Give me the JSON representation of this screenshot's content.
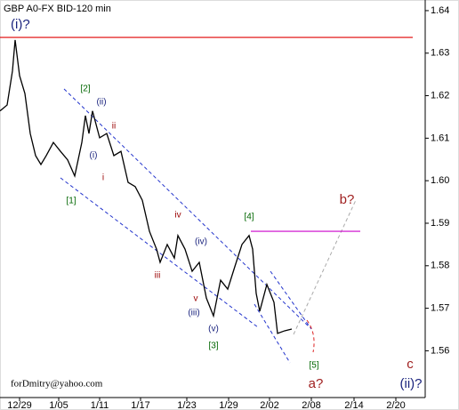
{
  "chart_data": {
    "type": "line",
    "title": "GBP A0-FX BID-120 min",
    "color": "#000000",
    "x": [
      0,
      8,
      14,
      17,
      22,
      28,
      34,
      40,
      46,
      52,
      60,
      68,
      76,
      84,
      92,
      96,
      100,
      104,
      112,
      120,
      128,
      136,
      144,
      152,
      160,
      168,
      176,
      180,
      188,
      196,
      200,
      208,
      216,
      224,
      232,
      240,
      248,
      256,
      264,
      272,
      280,
      284,
      288,
      292,
      300,
      308,
      312,
      320,
      328
    ],
    "values": [
      1.6164,
      1.6178,
      1.6258,
      1.6331,
      1.6247,
      1.6205,
      1.6111,
      1.6059,
      1.6038,
      1.6059,
      1.609,
      1.6069,
      1.6049,
      1.6011,
      1.609,
      1.6153,
      1.6111,
      1.6164,
      1.6101,
      1.6111,
      1.6059,
      1.6069,
      1.5996,
      1.5986,
      1.5954,
      1.5881,
      1.5839,
      1.5808,
      1.585,
      1.5818,
      1.5871,
      1.5839,
      1.5787,
      1.5808,
      1.5724,
      1.5682,
      1.5766,
      1.5745,
      1.5798,
      1.585,
      1.5871,
      1.5839,
      1.5735,
      1.5693,
      1.5756,
      1.5714,
      1.5641,
      1.5647,
      1.5651
    ],
    "xlim": [
      0,
      478
    ],
    "xticks": [
      {
        "value": 22,
        "label": "12/29"
      },
      {
        "value": 66,
        "label": "1/05"
      },
      {
        "value": 112,
        "label": "1/11"
      },
      {
        "value": 158,
        "label": "1/17"
      },
      {
        "value": 210,
        "label": "1/23"
      },
      {
        "value": 257,
        "label": "1/29"
      },
      {
        "value": 303,
        "label": "2/02"
      },
      {
        "value": 350,
        "label": "2/08"
      },
      {
        "value": 398,
        "label": "2/14"
      },
      {
        "value": 445,
        "label": "2/20"
      }
    ],
    "ylim": [
      1.549,
      1.6425
    ],
    "yticks": [
      1.64,
      1.63,
      1.62,
      1.61,
      {
        "value": 1.6,
        "label": "1.60"
      },
      1.59,
      1.58,
      1.57,
      1.56
    ],
    "hlines": [
      {
        "value": 1.6337,
        "color": "#e00000",
        "x": [
          0,
          464
        ]
      },
      {
        "value": 1.5881,
        "color": "#cc00cc",
        "x": [
          282,
          405
        ]
      }
    ],
    "annotations": [
      {
        "text": "(i)?",
        "color": "#1a237e"
      },
      {
        "text": "[2]",
        "color": "#006600"
      },
      {
        "text": "(ii)",
        "color": "#1a237e"
      },
      {
        "text": "ii",
        "color": "#990000"
      },
      {
        "text": "(i)",
        "color": "#1a237e"
      },
      {
        "text": "i",
        "color": "#990000"
      },
      {
        "text": "[1]",
        "color": "#006600"
      },
      {
        "text": "iv",
        "color": "#990000"
      },
      {
        "text": "(iv)",
        "color": "#1a237e"
      },
      {
        "text": "[4]",
        "color": "#006600"
      },
      {
        "text": "b?",
        "color": "#a02020"
      },
      {
        "text": "iii",
        "color": "#990000"
      },
      {
        "text": "v",
        "color": "#990000"
      },
      {
        "text": "(iii)",
        "color": "#1a237e"
      },
      {
        "text": "(v)",
        "color": "#1a237e"
      },
      {
        "text": "[3]",
        "color": "#006600"
      },
      {
        "text": "[5]",
        "color": "#006600"
      },
      {
        "text": "a?",
        "color": "#a02020"
      },
      {
        "text": "c",
        "color": "#a02020"
      },
      {
        "text": "(ii)?",
        "color": "#1a237e"
      }
    ],
    "footer": "forDmitry@yahoo.com"
  }
}
